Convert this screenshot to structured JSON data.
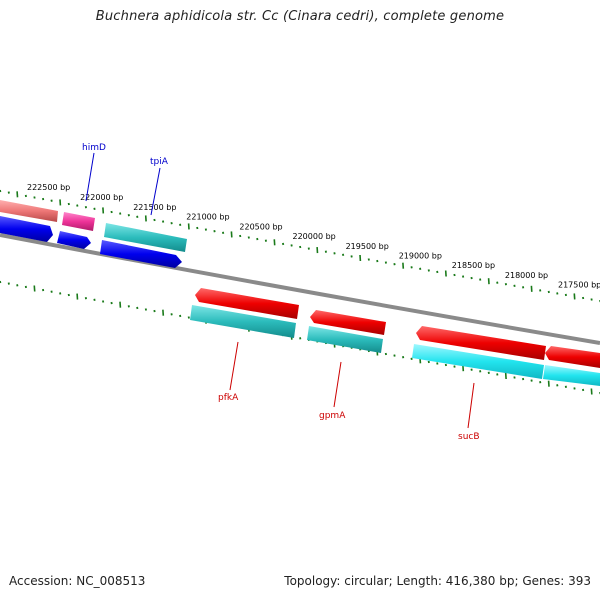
{
  "title": "Buchnera aphidicola str. Cc (Cinara cedri), complete genome",
  "footer": {
    "accession": "Accession: NC_008513",
    "topology": "Topology: circular; Length: 416,380 bp; Genes: 393"
  },
  "colors": {
    "backbone": "#8a8a8a",
    "tick": "#1a7a1a",
    "forward_label": "#0000cc",
    "reverse_label": "#cc0000",
    "cds_forward": "#0000ee",
    "cds_reverse": "#ee0000",
    "rna_forward": "#30c8c8",
    "rna_reverse": "#20e0e8",
    "pink": "#ee3399",
    "salmon": "#ee7777"
  },
  "ticks": {
    "labels": [
      "222500 bp",
      "222000 bp",
      "221500 bp",
      "221000 bp",
      "220500 bp",
      "220000 bp",
      "219500 bp",
      "219000 bp",
      "218500 bp",
      "218000 bp",
      "217500 bp"
    ]
  },
  "labels": {
    "himD": "himD",
    "tpiA": "tpiA",
    "pfkA": "pfkA",
    "gpmA": "gpmA",
    "sucB": "sucB"
  }
}
